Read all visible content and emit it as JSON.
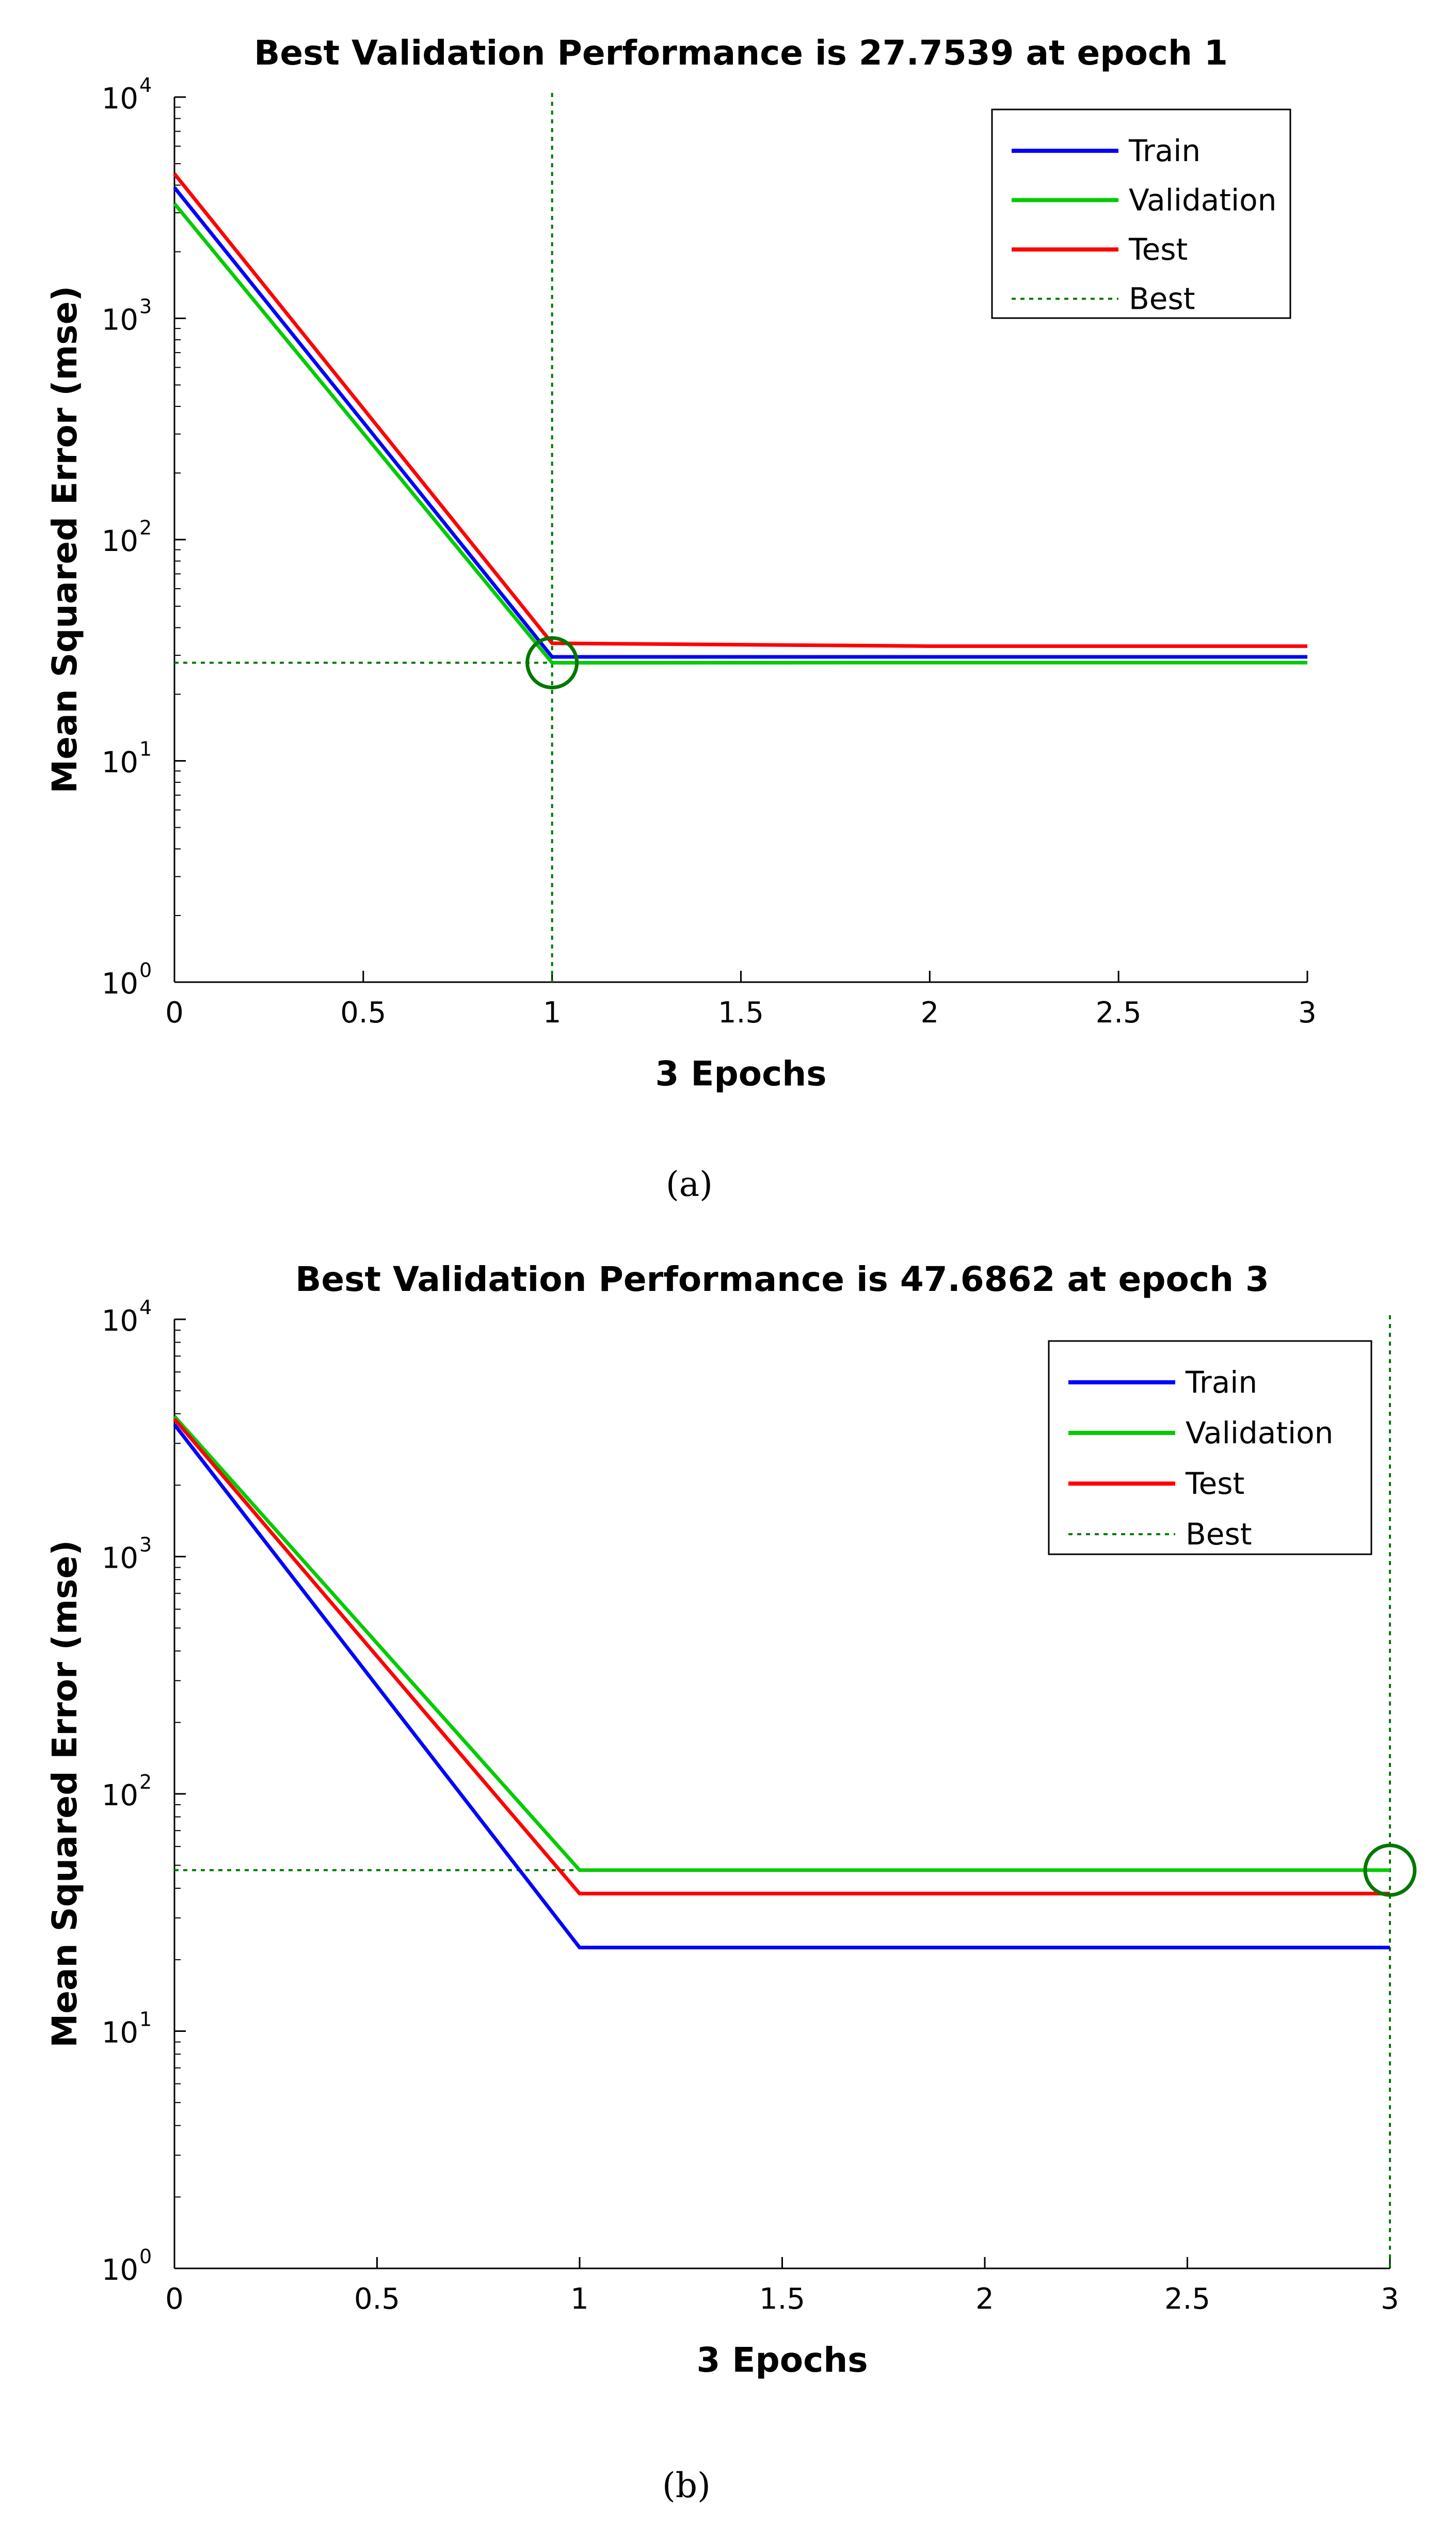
{
  "chart_data": [
    {
      "type": "line",
      "panel": "a",
      "title": "Best Validation Performance is 27.7539 at epoch 1",
      "xlabel": "3 Epochs",
      "ylabel": "Mean Squared Error  (mse)",
      "yscale": "log",
      "xlim": [
        0,
        3
      ],
      "ylim": [
        1,
        10000
      ],
      "x_ticks": [
        "0",
        "0.5",
        "1",
        "1.5",
        "2",
        "2.5",
        "3"
      ],
      "y_ticks": [
        {
          "base": "10",
          "exp": "0"
        },
        {
          "base": "10",
          "exp": "1"
        },
        {
          "base": "10",
          "exp": "2"
        },
        {
          "base": "10",
          "exp": "3"
        },
        {
          "base": "10",
          "exp": "4"
        }
      ],
      "x": [
        0,
        1,
        2,
        3
      ],
      "series": [
        {
          "name": "Train",
          "color": "#0000ff",
          "values": [
            3900,
            29.5,
            29.5,
            29.5
          ]
        },
        {
          "name": "Validation",
          "color": "#00cc00",
          "values": [
            3300,
            27.7539,
            27.8,
            27.8
          ]
        },
        {
          "name": "Test",
          "color": "#ff0000",
          "values": [
            4500,
            34,
            33,
            33
          ]
        }
      ],
      "best": {
        "name": "Best",
        "color": "#007700",
        "epoch": 1,
        "value": 27.7539
      },
      "legend_position": "top-right",
      "caption": "(a)"
    },
    {
      "type": "line",
      "panel": "b",
      "title": "Best Validation Performance is 47.6862 at epoch 3",
      "xlabel": "3 Epochs",
      "ylabel": "Mean Squared Error  (mse)",
      "yscale": "log",
      "xlim": [
        0,
        3
      ],
      "ylim": [
        1,
        10000
      ],
      "x_ticks": [
        "0",
        "0.5",
        "1",
        "1.5",
        "2",
        "2.5",
        "3"
      ],
      "y_ticks": [
        {
          "base": "10",
          "exp": "0"
        },
        {
          "base": "10",
          "exp": "1"
        },
        {
          "base": "10",
          "exp": "2"
        },
        {
          "base": "10",
          "exp": "3"
        },
        {
          "base": "10",
          "exp": "4"
        }
      ],
      "x": [
        0,
        1,
        2,
        3
      ],
      "series": [
        {
          "name": "Train",
          "color": "#0000ff",
          "values": [
            3600,
            22.5,
            22.5,
            22.5
          ]
        },
        {
          "name": "Validation",
          "color": "#00cc00",
          "values": [
            3900,
            47.6862,
            47.6862,
            47.6862
          ]
        },
        {
          "name": "Test",
          "color": "#ff0000",
          "values": [
            3800,
            38,
            38,
            38
          ]
        }
      ],
      "best": {
        "name": "Best",
        "color": "#007700",
        "epoch": 3,
        "value": 47.6862
      },
      "legend_position": "top-right",
      "caption": "(b)"
    }
  ]
}
